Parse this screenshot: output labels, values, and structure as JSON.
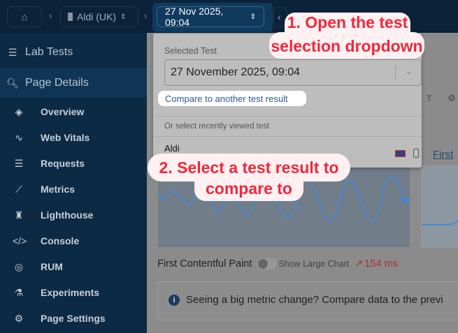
{
  "breadcrumb": {
    "site": "Aldi (UK)",
    "test": "27 Nov 2025, 09:04"
  },
  "sidebar": {
    "lab_tests": "Lab Tests",
    "page_details": "Page Details",
    "items": [
      {
        "label": "Overview",
        "icon": "layers-icon"
      },
      {
        "label": "Web Vitals",
        "icon": "pulse-icon"
      },
      {
        "label": "Requests",
        "icon": "list-icon"
      },
      {
        "label": "Metrics",
        "icon": "trend-icon"
      },
      {
        "label": "Lighthouse",
        "icon": "lighthouse-icon"
      },
      {
        "label": "Console",
        "icon": "code-icon"
      },
      {
        "label": "RUM",
        "icon": "gauge-icon"
      },
      {
        "label": "Experiments",
        "icon": "flask-icon"
      },
      {
        "label": "Page Settings",
        "icon": "gear-icon"
      }
    ]
  },
  "dropdown": {
    "selected_label": "Selected Test",
    "selected_value": "27 November 2025, 09:04",
    "compare_link": "Compare to another test result",
    "recent_label": "Or select recently viewed test",
    "recent": [
      {
        "name": "Aldi"
      }
    ]
  },
  "main": {
    "first_link": "First",
    "metric_title": "First Contentful Paint",
    "toggle_label": "Show Large Chart",
    "metric_change": "154 ms",
    "info_text": "Seeing a big metric change? Compare data to the previ",
    "header_letter": "T"
  },
  "callouts": {
    "step1": "1. Open the test selection dropdown",
    "step1_line1": "1. Open the test",
    "step1_line2": "selection dropdown",
    "step2_line1": "2. Select a test result to",
    "step2_line2": "compare to"
  },
  "colors": {
    "callout_text": "#f0283c",
    "accent": "#2a5a9a",
    "change": "#c83a3a"
  }
}
